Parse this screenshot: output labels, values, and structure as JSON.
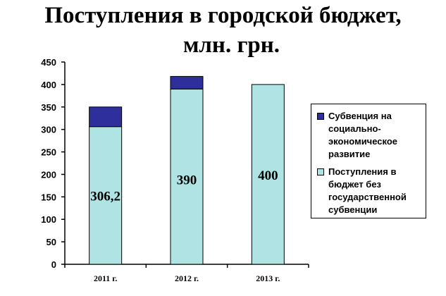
{
  "chart_data": {
    "type": "bar",
    "stacked": true,
    "title_lines": [
      "Поступления в городской бюджет,",
      "млн. грн."
    ],
    "categories": [
      "2011 г.",
      "2012 г.",
      "2013 г."
    ],
    "ylim": [
      0,
      450
    ],
    "yticks": [
      0,
      50,
      100,
      150,
      200,
      250,
      300,
      350,
      400,
      450
    ],
    "grid": false,
    "legend_position": "right",
    "series": [
      {
        "name": "Поступления в\nбюджет без\nгосударственной\nсубвенции",
        "values": [
          306.2,
          390,
          400
        ],
        "color": "#b0e4e4",
        "data_labels": [
          "306,2",
          "390",
          "400"
        ]
      },
      {
        "name": "Субвенция на\nсоциально-\nэкономическое\nразвитие",
        "values": [
          43.8,
          28,
          0
        ],
        "color": "#2e2e9c"
      }
    ]
  }
}
